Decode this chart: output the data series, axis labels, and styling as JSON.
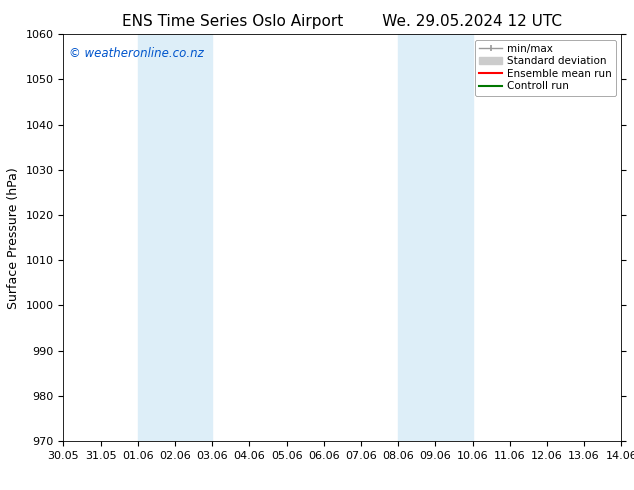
{
  "title_left": "ENS Time Series Oslo Airport",
  "title_right": "We. 29.05.2024 12 UTC",
  "ylabel": "Surface Pressure (hPa)",
  "ylim": [
    970,
    1060
  ],
  "yticks": [
    970,
    980,
    990,
    1000,
    1010,
    1020,
    1030,
    1040,
    1050,
    1060
  ],
  "xtick_labels": [
    "30.05",
    "31.05",
    "01.06",
    "02.06",
    "03.06",
    "04.06",
    "05.06",
    "06.06",
    "07.06",
    "08.06",
    "09.06",
    "10.06",
    "11.06",
    "12.06",
    "13.06",
    "14.06"
  ],
  "shaded_regions": [
    {
      "x_start": "01.06",
      "x_end": "03.06",
      "color": "#ddeef8"
    },
    {
      "x_start": "08.06",
      "x_end": "10.06",
      "color": "#ddeef8"
    }
  ],
  "watermark": "© weatheronline.co.nz",
  "watermark_color": "#0055cc",
  "background_color": "#ffffff",
  "legend_items": [
    {
      "label": "min/max",
      "color": "#999999",
      "lw": 1.0
    },
    {
      "label": "Standard deviation",
      "color": "#cccccc",
      "lw": 6
    },
    {
      "label": "Ensemble mean run",
      "color": "#ff0000",
      "lw": 1.5
    },
    {
      "label": "Controll run",
      "color": "#007700",
      "lw": 1.5
    }
  ],
  "title_fontsize": 11,
  "axis_fontsize": 9,
  "tick_fontsize": 8,
  "legend_fontsize": 7.5
}
